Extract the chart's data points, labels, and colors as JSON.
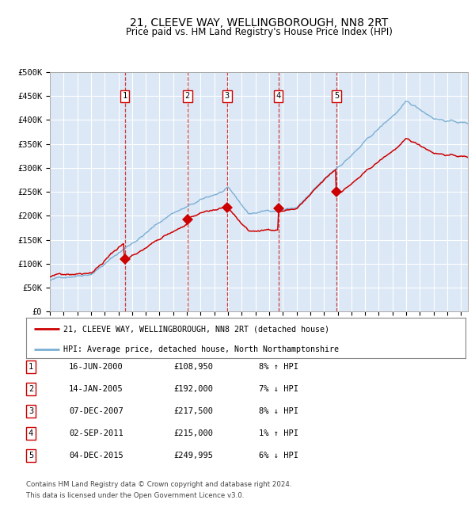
{
  "title": "21, CLEEVE WAY, WELLINGBOROUGH, NN8 2RT",
  "subtitle": "Price paid vs. HM Land Registry's House Price Index (HPI)",
  "legend_line1": "21, CLEEVE WAY, WELLINGBOROUGH, NN8 2RT (detached house)",
  "legend_line2": "HPI: Average price, detached house, North Northamptonshire",
  "footnote1": "Contains HM Land Registry data © Crown copyright and database right 2024.",
  "footnote2": "This data is licensed under the Open Government Licence v3.0.",
  "hpi_color": "#7bafd4",
  "price_color": "#cc0000",
  "plot_bg": "#dce8f5",
  "grid_color": "#ffffff",
  "transactions": [
    {
      "num": 1,
      "date": "16-JUN-2000",
      "year": 2000.46,
      "price": 108950,
      "pct": "8%",
      "dir": "↑",
      "label": "1"
    },
    {
      "num": 2,
      "date": "14-JAN-2005",
      "year": 2005.04,
      "price": 192000,
      "pct": "7%",
      "dir": "↓",
      "label": "2"
    },
    {
      "num": 3,
      "date": "07-DEC-2007",
      "year": 2007.93,
      "price": 217500,
      "pct": "8%",
      "dir": "↓",
      "label": "3"
    },
    {
      "num": 4,
      "date": "02-SEP-2011",
      "year": 2011.67,
      "price": 215000,
      "pct": "1%",
      "dir": "↑",
      "label": "4"
    },
    {
      "num": 5,
      "date": "04-DEC-2015",
      "year": 2015.92,
      "price": 249995,
      "pct": "6%",
      "dir": "↓",
      "label": "5"
    }
  ],
  "table_rows": [
    [
      "1",
      "16-JUN-2000",
      "£108,950",
      "8% ↑ HPI"
    ],
    [
      "2",
      "14-JAN-2005",
      "£192,000",
      "7% ↓ HPI"
    ],
    [
      "3",
      "07-DEC-2007",
      "£217,500",
      "8% ↓ HPI"
    ],
    [
      "4",
      "02-SEP-2011",
      "£215,000",
      "1% ↑ HPI"
    ],
    [
      "5",
      "04-DEC-2015",
      "£249,995",
      "6% ↓ HPI"
    ]
  ],
  "ylim": [
    0,
    500000
  ],
  "xlim_start": 1995.0,
  "xlim_end": 2025.5,
  "yticks": [
    0,
    50000,
    100000,
    150000,
    200000,
    250000,
    300000,
    350000,
    400000,
    450000,
    500000
  ],
  "ytick_labels": [
    "£0",
    "£50K",
    "£100K",
    "£150K",
    "£200K",
    "£250K",
    "£300K",
    "£350K",
    "£400K",
    "£450K",
    "£500K"
  ],
  "title_fontsize": 10,
  "subtitle_fontsize": 8.5
}
